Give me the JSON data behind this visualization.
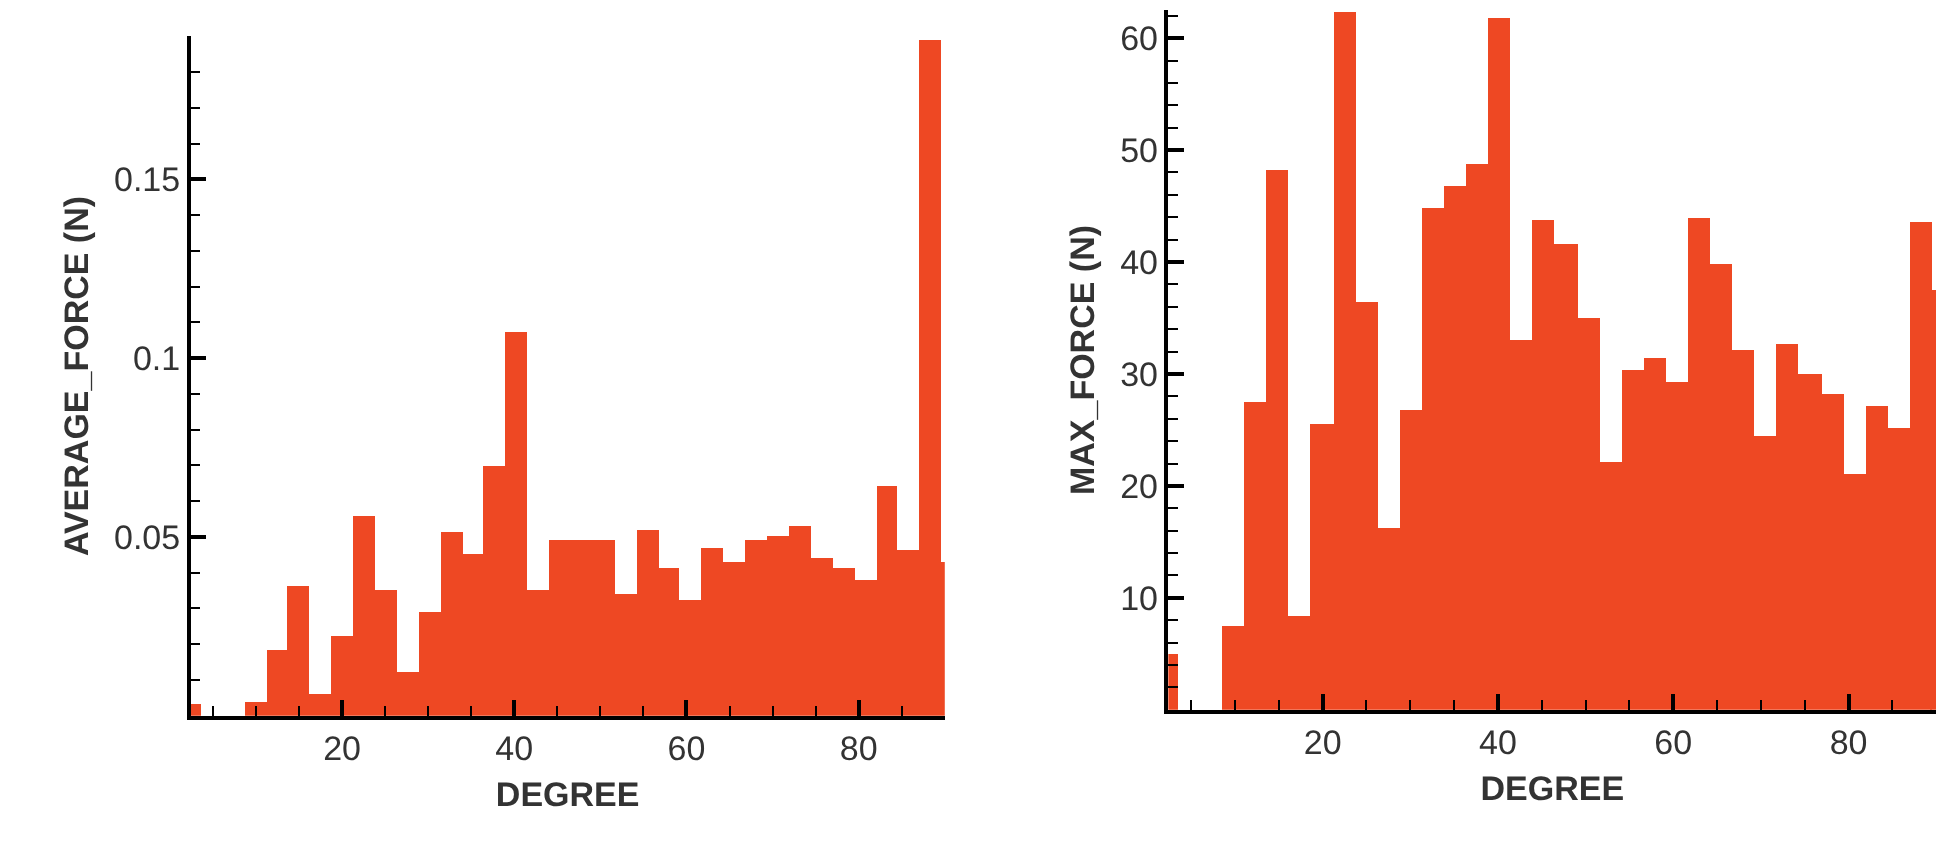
{
  "chart_data": [
    {
      "type": "histogram",
      "xlabel": "DEGREE",
      "ylabel": "AVERAGE_FORCE (N)",
      "color": "#ee4823",
      "bins": [
        2.4,
        3.53,
        8.59,
        11.12,
        13.65,
        16.18,
        18.71,
        21.24,
        23.77,
        26.3,
        28.83,
        31.36,
        33.89,
        36.42,
        38.95,
        41.48,
        44.01,
        46.54,
        49.07,
        51.6,
        54.13,
        56.66,
        59.19,
        61.72,
        64.25,
        66.78,
        69.31,
        71.84,
        74.37,
        76.9,
        79.43,
        81.96,
        84.49,
        87.02,
        89.55,
        90
      ],
      "values": [
        0.003,
        0,
        0.004,
        0.018,
        0.036,
        0.006,
        0.022,
        0.056,
        0.035,
        0.012,
        0.029,
        0.051,
        0.045,
        0.07,
        0.107,
        0.035,
        0.049,
        0.049,
        0.049,
        0.034,
        0.052,
        0.041,
        0.032,
        0.047,
        0.043,
        0.049,
        0.05,
        0.053,
        0.044,
        0.041,
        0.038,
        0.064,
        0.046,
        0.189,
        0.043
      ],
      "xlim": [
        2.4,
        90
      ],
      "ylim": [
        0,
        0.19
      ],
      "xticks": [
        {
          "value": 5,
          "label": null
        },
        {
          "value": 10,
          "label": null
        },
        {
          "value": 15,
          "label": null
        },
        20,
        {
          "value": 25,
          "label": null
        },
        {
          "value": 30,
          "label": null
        },
        {
          "value": 35,
          "label": null
        },
        40,
        {
          "value": 45,
          "label": null
        },
        {
          "value": 50,
          "label": null
        },
        {
          "value": 55,
          "label": null
        },
        60,
        {
          "value": 65,
          "label": null
        },
        {
          "value": 70,
          "label": null
        },
        {
          "value": 75,
          "label": null
        },
        80,
        {
          "value": 85,
          "label": null
        }
      ],
      "yticks": [
        {
          "value": 0.01,
          "label": null
        },
        {
          "value": 0.02,
          "label": null
        },
        {
          "value": 0.03,
          "label": null
        },
        {
          "value": 0.04,
          "label": null
        },
        0.05,
        {
          "value": 0.06,
          "label": null
        },
        {
          "value": 0.07,
          "label": null
        },
        {
          "value": 0.08,
          "label": null
        },
        {
          "value": 0.09,
          "label": null
        },
        0.1,
        {
          "value": 0.11,
          "label": null
        },
        {
          "value": 0.12,
          "label": null
        },
        {
          "value": 0.13,
          "label": null
        },
        {
          "value": 0.14,
          "label": null
        },
        0.15,
        {
          "value": 0.16,
          "label": null
        },
        {
          "value": 0.17,
          "label": null
        },
        {
          "value": 0.18,
          "label": null
        }
      ]
    },
    {
      "type": "histogram",
      "xlabel": "DEGREE",
      "ylabel": "MAX_FORCE (N)",
      "color": "#ee4823",
      "bins": [
        2.4,
        3.53,
        8.59,
        11.12,
        13.65,
        16.18,
        18.71,
        21.24,
        23.77,
        26.3,
        28.83,
        31.36,
        33.89,
        36.42,
        38.95,
        41.48,
        44.01,
        46.54,
        49.07,
        51.6,
        54.13,
        56.66,
        59.19,
        61.72,
        64.25,
        66.78,
        69.31,
        71.84,
        74.37,
        76.9,
        79.43,
        81.96,
        84.49,
        87.02,
        89.55,
        90
      ],
      "values": [
        5.0,
        0,
        7.5,
        27.4,
        48.2,
        8.4,
        25.6,
        62.4,
        36.5,
        16.3,
        26.8,
        44.8,
        46.8,
        48.8,
        61.7,
        33.0,
        43.8,
        41.6,
        34.9,
        22.1,
        30.4,
        31.4,
        29.3,
        43.9,
        39.8,
        32.2,
        24.5,
        32.7,
        29.9,
        28.2,
        21.0,
        27.1,
        25.2,
        43.6,
        37.5
      ],
      "xlim": [
        2.4,
        90
      ],
      "ylim": [
        0,
        62.5
      ],
      "xticks": [
        {
          "value": 5,
          "label": null
        },
        {
          "value": 10,
          "label": null
        },
        {
          "value": 15,
          "label": null
        },
        20,
        {
          "value": 25,
          "label": null
        },
        {
          "value": 30,
          "label": null
        },
        {
          "value": 35,
          "label": null
        },
        40,
        {
          "value": 45,
          "label": null
        },
        {
          "value": 50,
          "label": null
        },
        {
          "value": 55,
          "label": null
        },
        60,
        {
          "value": 65,
          "label": null
        },
        {
          "value": 70,
          "label": null
        },
        {
          "value": 75,
          "label": null
        },
        80,
        {
          "value": 85,
          "label": null
        }
      ],
      "yticks": [
        {
          "value": 2,
          "label": null
        },
        {
          "value": 4,
          "label": null
        },
        {
          "value": 6,
          "label": null
        },
        {
          "value": 8,
          "label": null
        },
        10,
        {
          "value": 12,
          "label": null
        },
        {
          "value": 14,
          "label": null
        },
        {
          "value": 16,
          "label": null
        },
        {
          "value": 18,
          "label": null
        },
        20,
        {
          "value": 22,
          "label": null
        },
        {
          "value": 24,
          "label": null
        },
        {
          "value": 26,
          "label": null
        },
        {
          "value": 28,
          "label": null
        },
        30,
        {
          "value": 32,
          "label": null
        },
        {
          "value": 34,
          "label": null
        },
        {
          "value": 36,
          "label": null
        },
        {
          "value": 38,
          "label": null
        },
        40,
        {
          "value": 42,
          "label": null
        },
        {
          "value": 44,
          "label": null
        },
        {
          "value": 46,
          "label": null
        },
        {
          "value": 48,
          "label": null
        },
        50,
        {
          "value": 52,
          "label": null
        },
        {
          "value": 54,
          "label": null
        },
        {
          "value": 56,
          "label": null
        },
        {
          "value": 58,
          "label": null
        },
        60,
        {
          "value": 62,
          "label": null
        }
      ]
    }
  ]
}
